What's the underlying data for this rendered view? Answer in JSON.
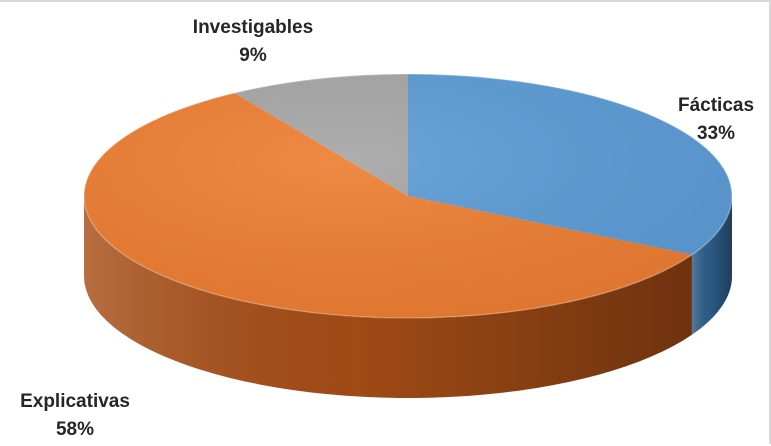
{
  "chart_data": {
    "type": "pie",
    "title": "",
    "slices": [
      {
        "name": "Fácticas",
        "value": 33,
        "label": "33%",
        "color": "#5b9bd5",
        "side_color": "#2e5f8c"
      },
      {
        "name": "Explicativas",
        "value": 58,
        "label": "58%",
        "color": "#ed7d31",
        "side_color": "#a84e16"
      },
      {
        "name": "Investigables",
        "value": 9,
        "label": "9%",
        "color": "#a5a5a5",
        "side_color": "#6e6e6e"
      }
    ],
    "start_angle": "12 o'clock",
    "direction": "clockwise",
    "style": "3d",
    "legend": "none"
  }
}
